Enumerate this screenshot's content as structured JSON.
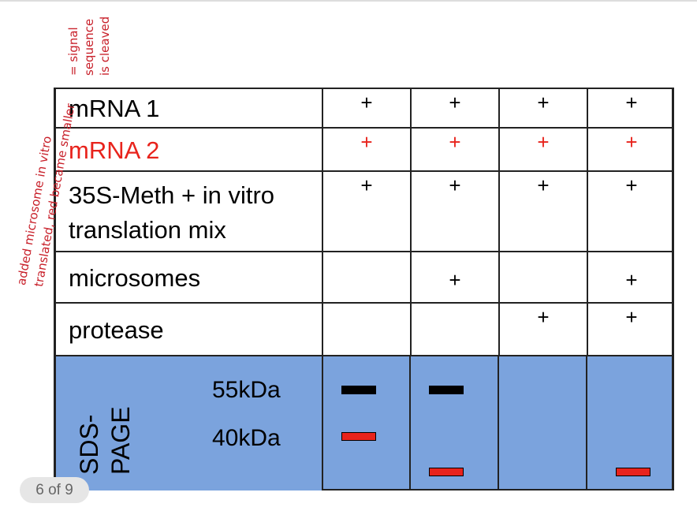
{
  "table": {
    "rows": [
      {
        "label": "mRNA 1",
        "cells": [
          "+",
          "+",
          "+",
          "+"
        ]
      },
      {
        "label": "mRNA 2",
        "cells": [
          "+",
          "+",
          "+",
          "+"
        ]
      },
      {
        "label": "35S-Meth + in vitro translation mix",
        "cells": [
          "+",
          "+",
          "+",
          "+"
        ]
      },
      {
        "label": "microsomes",
        "cells": [
          null,
          "+",
          null,
          "+"
        ]
      },
      {
        "label": "protease",
        "cells": [
          null,
          null,
          "+",
          "+"
        ]
      }
    ]
  },
  "gel": {
    "label": [
      "SDS-",
      "PAGE"
    ],
    "markers": [
      "55kDa",
      "40kDa"
    ]
  },
  "notes": {
    "left": [
      "added microsome in vitro",
      "translated, red became smaller"
    ],
    "top": [
      "= signal",
      "sequence",
      "is cleaved"
    ]
  },
  "pager": "6 of 9"
}
